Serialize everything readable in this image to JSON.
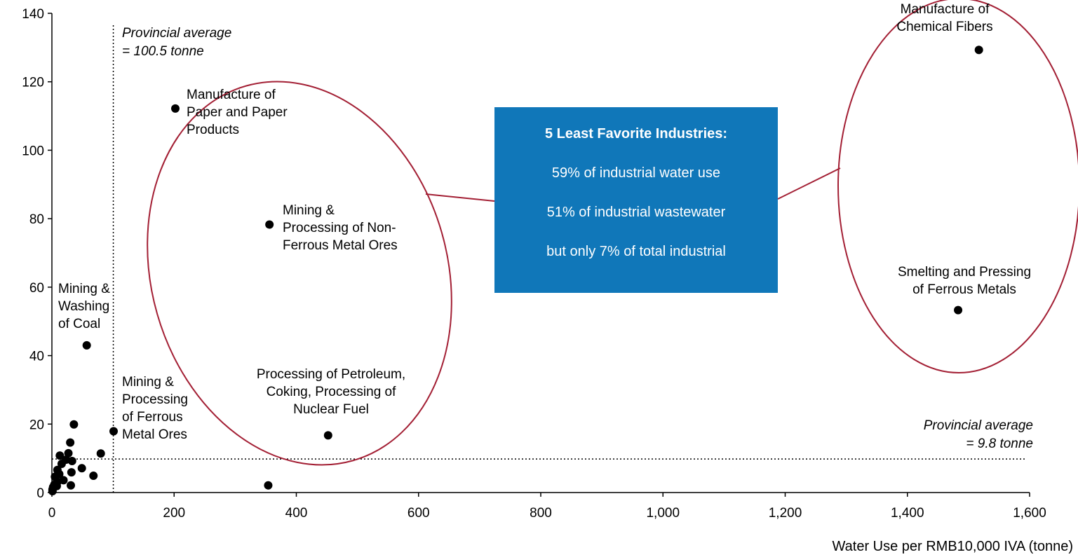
{
  "chart_data": {
    "type": "scatter",
    "xlabel": "Water Use per RMB10,000 IVA (tonne)",
    "ylabel": "",
    "xlim": [
      0,
      1600
    ],
    "ylim": [
      0,
      140
    ],
    "x_ticks": [
      "0",
      "200",
      "400",
      "600",
      "800",
      "1,000",
      "1,200",
      "1,400",
      "1,600"
    ],
    "x_tick_values": [
      0,
      200,
      400,
      600,
      800,
      1000,
      1200,
      1400,
      1600
    ],
    "y_ticks": [
      "0",
      "20",
      "40",
      "60",
      "80",
      "100",
      "120",
      "140"
    ],
    "y_tick_values": [
      0,
      20,
      40,
      60,
      80,
      100,
      120,
      140
    ],
    "labeled_points": [
      {
        "x": 1517,
        "y": 129.3,
        "label": [
          "Manufacture of",
          "Chemical Fibers"
        ]
      },
      {
        "x": 202,
        "y": 112.2,
        "label": [
          "Manufacture of",
          "Paper and Paper",
          "Products"
        ]
      },
      {
        "x": 356,
        "y": 78.3,
        "label": [
          "Mining &",
          "Processing of Non-",
          "Ferrous Metal Ores"
        ]
      },
      {
        "x": 1483,
        "y": 53.3,
        "label": [
          "Smelting and Pressing",
          "of Ferrous Metals"
        ]
      },
      {
        "x": 57,
        "y": 43.0,
        "label": [
          "Mining &",
          "Washing",
          "of Coal"
        ]
      },
      {
        "x": 452,
        "y": 16.7,
        "label": [
          "Processing of Petroleum,",
          "Coking, Processing of",
          "Nuclear Fuel"
        ]
      },
      {
        "x": 101,
        "y": 17.9,
        "label": [
          "Mining &",
          "Processing",
          "of Ferrous",
          "Metal Ores"
        ]
      }
    ],
    "other_points": [
      {
        "x": 354,
        "y": 2.1
      },
      {
        "x": 36,
        "y": 19.9
      },
      {
        "x": 80,
        "y": 11.4
      },
      {
        "x": 30,
        "y": 14.6
      },
      {
        "x": 27,
        "y": 11.5
      },
      {
        "x": 13,
        "y": 10.8
      },
      {
        "x": 23,
        "y": 9.6
      },
      {
        "x": 33,
        "y": 9.2
      },
      {
        "x": 16,
        "y": 8.4
      },
      {
        "x": 49,
        "y": 7.1
      },
      {
        "x": 9,
        "y": 6.6
      },
      {
        "x": 32,
        "y": 5.9
      },
      {
        "x": 68,
        "y": 4.9
      },
      {
        "x": 12,
        "y": 5.4
      },
      {
        "x": 5,
        "y": 4.6
      },
      {
        "x": 19,
        "y": 3.6
      },
      {
        "x": 9,
        "y": 3.1
      },
      {
        "x": 4,
        "y": 2.3
      },
      {
        "x": 31,
        "y": 2.1
      },
      {
        "x": 2,
        "y": 1.6
      },
      {
        "x": 1,
        "y": 0.9
      },
      {
        "x": 1,
        "y": 0.4
      },
      {
        "x": 8,
        "y": 1.9
      }
    ],
    "reference_lines": [
      {
        "axis": "x",
        "value": 100.5,
        "label": [
          "Provincial average",
          "= 100.5 tonne"
        ]
      },
      {
        "axis": "y",
        "value": 9.8,
        "label": [
          "Provincial average",
          "= 9.8 tonne"
        ]
      }
    ],
    "callout": {
      "title": "5 Least Favorite Industries:",
      "lines": [
        "59% of industrial water use",
        "51% of industrial wastewater",
        "but only 7% of total industrial"
      ]
    },
    "colors": {
      "point": "#000000",
      "ellipse": "#a31f34",
      "callout_bg": "#1077b9",
      "callout_text": "#ffffff"
    }
  }
}
